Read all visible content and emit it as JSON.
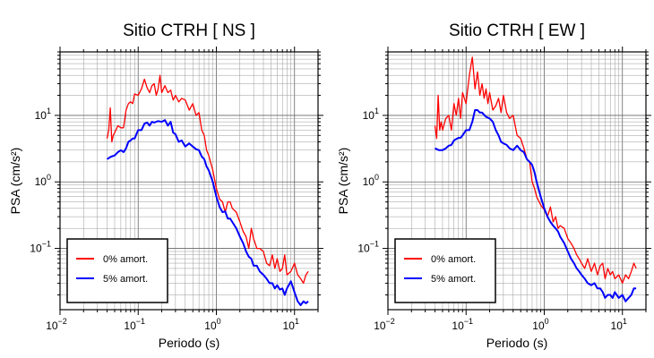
{
  "chart_data": [
    {
      "type": "line",
      "title": "Sitio CTRH [ NS ]",
      "xlabel": "Periodo (s)",
      "ylabel": "PSA (cm/s²)",
      "xscale": "log",
      "yscale": "log",
      "xlim": [
        0.01,
        20
      ],
      "ylim": [
        0.012,
        90
      ],
      "grid": true,
      "legend_position": "bottom-left",
      "x_ticks": [
        {
          "value": 0.01,
          "base": "10",
          "exp": "−2"
        },
        {
          "value": 0.1,
          "base": "10",
          "exp": "−1"
        },
        {
          "value": 1,
          "base": "10",
          "exp": "0"
        },
        {
          "value": 10,
          "base": "10",
          "exp": "1"
        }
      ],
      "y_ticks": [
        {
          "value": 0.1,
          "base": "10",
          "exp": "−1"
        },
        {
          "value": 1,
          "base": "10",
          "exp": "0"
        },
        {
          "value": 10,
          "base": "10",
          "exp": "1"
        }
      ],
      "series": [
        {
          "name": "0% amort.",
          "color": "#ff0000",
          "x": [
            0.04,
            0.042,
            0.044,
            0.046,
            0.048,
            0.05,
            0.055,
            0.06,
            0.065,
            0.07,
            0.075,
            0.08,
            0.085,
            0.09,
            0.1,
            0.11,
            0.12,
            0.13,
            0.14,
            0.15,
            0.16,
            0.17,
            0.18,
            0.19,
            0.2,
            0.22,
            0.24,
            0.26,
            0.28,
            0.3,
            0.33,
            0.36,
            0.4,
            0.45,
            0.5,
            0.55,
            0.6,
            0.65,
            0.7,
            0.75,
            0.8,
            0.9,
            1.0,
            1.1,
            1.2,
            1.3,
            1.4,
            1.5,
            1.6,
            1.8,
            2.0,
            2.2,
            2.4,
            2.6,
            2.8,
            3.0,
            3.3,
            3.6,
            4.0,
            4.4,
            4.8,
            5.2,
            5.6,
            6.0,
            6.5,
            7.0,
            7.5,
            8.0,
            9.0,
            10,
            11,
            12,
            13,
            14,
            15
          ],
          "values": [
            4.5,
            6,
            13,
            4,
            5,
            5.5,
            7,
            6.5,
            6.5,
            12,
            15,
            16,
            15,
            21,
            20,
            25,
            35,
            26,
            22,
            28,
            30,
            20,
            25,
            40,
            22,
            28,
            22,
            24,
            17,
            20,
            16,
            18,
            17,
            12,
            15,
            10,
            11,
            6,
            5,
            3,
            2.5,
            1.5,
            0.8,
            0.55,
            0.5,
            0.35,
            0.5,
            0.5,
            0.4,
            0.35,
            0.25,
            0.18,
            0.15,
            0.1,
            0.2,
            0.14,
            0.1,
            0.1,
            0.09,
            0.06,
            0.055,
            0.08,
            0.05,
            0.07,
            0.045,
            0.05,
            0.08,
            0.04,
            0.045,
            0.06,
            0.04,
            0.035,
            0.03,
            0.04,
            0.045
          ]
        },
        {
          "name": "5% amort.",
          "color": "#0000ff",
          "x": [
            0.04,
            0.045,
            0.05,
            0.055,
            0.06,
            0.065,
            0.07,
            0.075,
            0.08,
            0.085,
            0.09,
            0.1,
            0.11,
            0.12,
            0.13,
            0.14,
            0.15,
            0.16,
            0.18,
            0.2,
            0.22,
            0.24,
            0.26,
            0.28,
            0.3,
            0.33,
            0.36,
            0.4,
            0.45,
            0.5,
            0.55,
            0.6,
            0.65,
            0.7,
            0.75,
            0.8,
            0.9,
            1.0,
            1.1,
            1.2,
            1.3,
            1.4,
            1.5,
            1.6,
            1.8,
            2.0,
            2.2,
            2.4,
            2.6,
            2.8,
            3.0,
            3.3,
            3.6,
            4.0,
            4.4,
            4.8,
            5.2,
            5.6,
            6.0,
            6.5,
            7.0,
            7.5,
            8.0,
            9.0,
            10,
            11,
            12,
            13,
            14,
            15
          ],
          "values": [
            2.2,
            2.4,
            2.5,
            2.8,
            3,
            2.8,
            3.2,
            4,
            4.2,
            4.5,
            4.5,
            6,
            6,
            7.5,
            7.8,
            7,
            8,
            7.8,
            8.2,
            8,
            8.5,
            7,
            8,
            5.5,
            5.2,
            4,
            4.2,
            3.4,
            3.8,
            3.4,
            3.1,
            3.0,
            2.4,
            2.2,
            1.7,
            1.5,
            1.0,
            0.6,
            0.42,
            0.35,
            0.36,
            0.28,
            0.28,
            0.25,
            0.2,
            0.15,
            0.12,
            0.09,
            0.075,
            0.07,
            0.055,
            0.055,
            0.045,
            0.04,
            0.035,
            0.03,
            0.03,
            0.025,
            0.028,
            0.024,
            0.025,
            0.02,
            0.025,
            0.032,
            0.022,
            0.016,
            0.014,
            0.016,
            0.015,
            0.016
          ]
        }
      ]
    },
    {
      "type": "line",
      "title": "Sitio CTRH [ EW ]",
      "xlabel": "Periodo (s)",
      "ylabel": "PSA (cm/s²)",
      "xscale": "log",
      "yscale": "log",
      "xlim": [
        0.01,
        20
      ],
      "ylim": [
        0.012,
        90
      ],
      "grid": true,
      "legend_position": "bottom-left",
      "x_ticks": [
        {
          "value": 0.01,
          "base": "10",
          "exp": "−2"
        },
        {
          "value": 0.1,
          "base": "10",
          "exp": "−1"
        },
        {
          "value": 1,
          "base": "10",
          "exp": "0"
        },
        {
          "value": 10,
          "base": "10",
          "exp": "1"
        }
      ],
      "y_ticks": [
        {
          "value": 0.1,
          "base": "10",
          "exp": "−1"
        },
        {
          "value": 1,
          "base": "10",
          "exp": "0"
        },
        {
          "value": 10,
          "base": "10",
          "exp": "1"
        }
      ],
      "series": [
        {
          "name": "0% amort.",
          "color": "#ff0000",
          "x": [
            0.04,
            0.042,
            0.044,
            0.046,
            0.048,
            0.05,
            0.055,
            0.06,
            0.065,
            0.07,
            0.075,
            0.08,
            0.085,
            0.09,
            0.1,
            0.11,
            0.12,
            0.13,
            0.14,
            0.15,
            0.16,
            0.17,
            0.18,
            0.19,
            0.2,
            0.22,
            0.24,
            0.26,
            0.28,
            0.3,
            0.33,
            0.36,
            0.4,
            0.45,
            0.5,
            0.55,
            0.6,
            0.65,
            0.7,
            0.75,
            0.8,
            0.9,
            1.0,
            1.1,
            1.2,
            1.3,
            1.4,
            1.5,
            1.6,
            1.8,
            2.0,
            2.2,
            2.4,
            2.6,
            2.8,
            3.0,
            3.3,
            3.6,
            4.0,
            4.4,
            4.8,
            5.2,
            5.6,
            6.0,
            6.5,
            7.0,
            7.5,
            8.0,
            9.0,
            10,
            11,
            12,
            13,
            14,
            15
          ],
          "values": [
            7,
            4.5,
            20,
            6,
            8,
            6,
            9,
            10,
            6,
            15,
            10,
            18,
            9,
            22,
            15,
            40,
            75,
            25,
            45,
            20,
            30,
            18,
            25,
            15,
            22,
            12,
            14,
            18,
            11,
            20,
            11,
            9,
            10,
            5,
            4.5,
            3.2,
            2.2,
            2.0,
            1.0,
            0.8,
            0.6,
            0.45,
            0.38,
            0.3,
            0.42,
            0.25,
            0.3,
            0.2,
            0.22,
            0.2,
            0.14,
            0.12,
            0.1,
            0.08,
            0.07,
            0.06,
            0.05,
            0.07,
            0.045,
            0.06,
            0.04,
            0.055,
            0.06,
            0.035,
            0.05,
            0.04,
            0.045,
            0.035,
            0.04,
            0.03,
            0.04,
            0.035,
            0.045,
            0.06,
            0.05
          ]
        },
        {
          "name": "5% amort.",
          "color": "#0000ff",
          "x": [
            0.04,
            0.045,
            0.05,
            0.055,
            0.06,
            0.065,
            0.07,
            0.075,
            0.08,
            0.085,
            0.09,
            0.1,
            0.11,
            0.12,
            0.13,
            0.14,
            0.15,
            0.16,
            0.18,
            0.2,
            0.22,
            0.24,
            0.26,
            0.28,
            0.3,
            0.33,
            0.36,
            0.4,
            0.45,
            0.5,
            0.55,
            0.6,
            0.65,
            0.7,
            0.75,
            0.8,
            0.9,
            1.0,
            1.1,
            1.2,
            1.3,
            1.4,
            1.5,
            1.6,
            1.8,
            2.0,
            2.2,
            2.4,
            2.6,
            2.8,
            3.0,
            3.3,
            3.6,
            4.0,
            4.4,
            4.8,
            5.2,
            5.6,
            6.0,
            6.5,
            7.0,
            7.5,
            8.0,
            9.0,
            10,
            11,
            12,
            13,
            14,
            15
          ],
          "values": [
            3.2,
            3.0,
            3.0,
            3.2,
            3.5,
            3.6,
            4.2,
            4.4,
            4.6,
            4.6,
            5,
            6,
            6,
            8,
            12,
            12,
            11,
            11,
            9.5,
            9,
            8,
            6,
            5,
            4,
            3.8,
            3.6,
            3.2,
            3.0,
            3.5,
            3.0,
            2.8,
            2.2,
            2.0,
            1.8,
            1.4,
            1.0,
            0.6,
            0.4,
            0.3,
            0.25,
            0.22,
            0.2,
            0.18,
            0.15,
            0.12,
            0.09,
            0.07,
            0.06,
            0.05,
            0.045,
            0.04,
            0.035,
            0.03,
            0.028,
            0.03,
            0.025,
            0.025,
            0.022,
            0.018,
            0.02,
            0.02,
            0.018,
            0.022,
            0.018,
            0.02,
            0.016,
            0.018,
            0.02,
            0.025,
            0.025
          ]
        }
      ]
    }
  ]
}
